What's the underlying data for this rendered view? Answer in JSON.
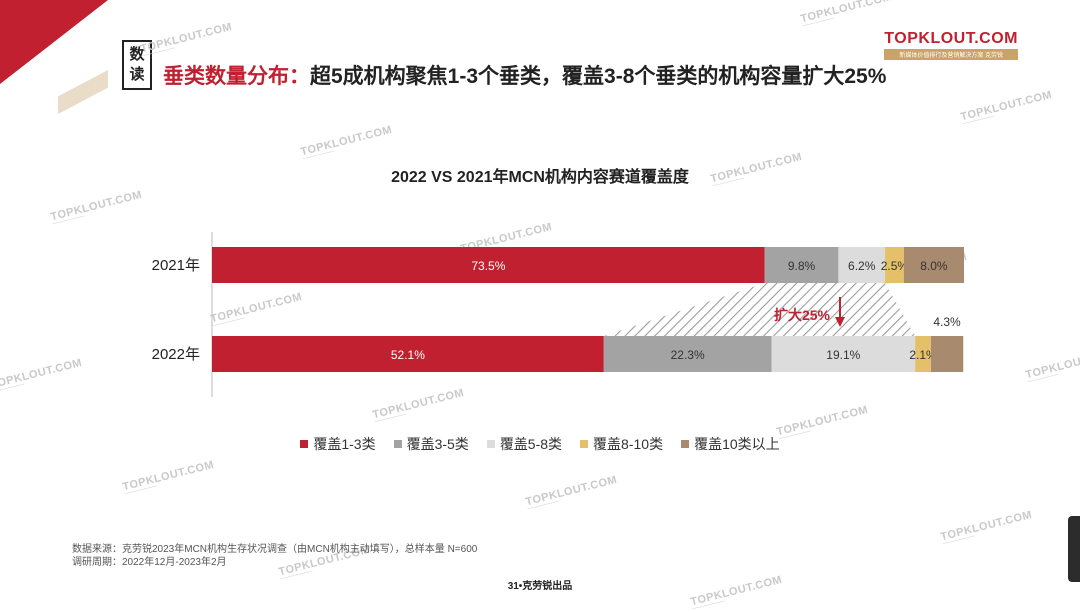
{
  "header": {
    "badge": [
      "数",
      "读"
    ],
    "title_highlight": "垂类数量分布：",
    "title_rest": "超5成机构聚焦1-3个垂类，覆盖3-8个垂类的机构容量扩大25%"
  },
  "logo": {
    "name": "TOPKLOUT.COM",
    "tagline": "新媒体价值排行及营销解决方案 克劳锐"
  },
  "watermark": "TOPKLOUT.COM",
  "chart_data": {
    "type": "bar",
    "orientation": "horizontal-stacked",
    "title": "2022 VS 2021年MCN机构内容赛道覆盖度",
    "categories": [
      "2021年",
      "2022年"
    ],
    "series": [
      {
        "name": "覆盖1-3类",
        "color": "#c0202f",
        "values": [
          73.5,
          52.1
        ],
        "labels": [
          "73.5%",
          "52.1%"
        ]
      },
      {
        "name": "覆盖3-5类",
        "color": "#a3a3a3",
        "values": [
          9.8,
          22.3
        ],
        "labels": [
          "9.8%",
          "22.3%"
        ]
      },
      {
        "name": "覆盖5-8类",
        "color": "#dcdcdc",
        "values": [
          6.2,
          19.1
        ],
        "labels": [
          "6.2%",
          "19.1%"
        ]
      },
      {
        "name": "覆盖8-10类",
        "color": "#e5c06a",
        "values": [
          2.5,
          2.1
        ],
        "labels": [
          "2.5%",
          "2.1%"
        ]
      },
      {
        "name": "覆盖10类以上",
        "color": "#a88a6e",
        "values": [
          8.0,
          4.3
        ],
        "labels": [
          "8.0%",
          "4.3%"
        ]
      }
    ],
    "xlim": [
      0,
      100
    ],
    "annotation": {
      "text": "扩大25%",
      "color": "#c0202f"
    }
  },
  "source": {
    "line1": "数据来源：克劳锐2023年MCN机构生存状况调查（由MCN机构主动填写），总样本量 N=600",
    "line2": "调研周期：2022年12月-2023年2月"
  },
  "footer": "31•克劳锐出品"
}
